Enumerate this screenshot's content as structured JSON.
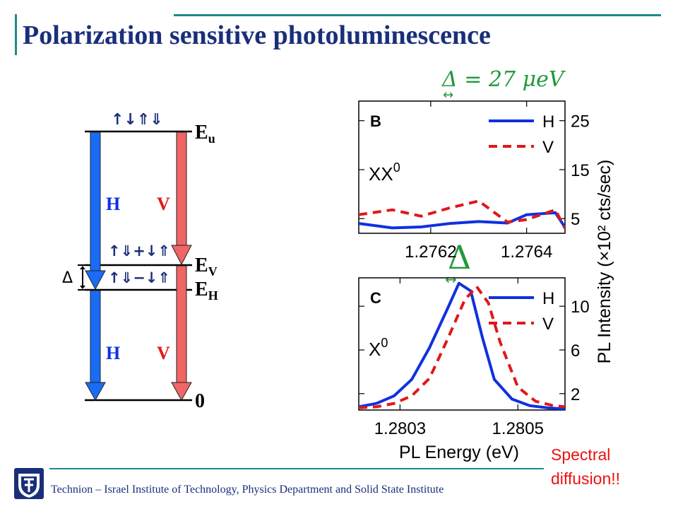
{
  "page": {
    "title": "Polarization sensitive photoluminescence",
    "footer": "Technion – Israel Institute of Technology, Physics Department and Solid State Institute",
    "note": "Spectral\ndiffusion!!",
    "colors": {
      "title": "#1a2f7a",
      "accent": "#1f8a8a",
      "H": "#1030e0",
      "V": "#e01818",
      "arrow_blue": "#1a6cf5",
      "arrow_red": "#f06565",
      "delta_arrow": "#1f9a3a"
    }
  },
  "level_diagram": {
    "levels": [
      {
        "id": "Eu",
        "label": "E",
        "sub": "u",
        "spin": "↑↓⇑⇓"
      },
      {
        "id": "EV",
        "label": "E",
        "sub": "V",
        "spin": "↑⇓+↓⇑"
      },
      {
        "id": "EH",
        "label": "E",
        "sub": "H",
        "spin": "↑⇓−↓⇑"
      },
      {
        "id": "zero",
        "label": "0",
        "sub": "",
        "spin": ""
      }
    ],
    "transitions": [
      {
        "label": "H",
        "from": "Eu",
        "to": "EH"
      },
      {
        "label": "V",
        "from": "Eu",
        "to": "EV"
      },
      {
        "label": "H",
        "from": "EH",
        "to": "zero"
      },
      {
        "label": "V",
        "from": "EV",
        "to": "zero"
      }
    ],
    "splitting_label": "Δ"
  },
  "annotations": {
    "top_delta": "Δ = 27 μeV",
    "middle_delta": "Δ",
    "double_arrow": "↔"
  },
  "chart_data": [
    {
      "type": "line",
      "panel_label": "B",
      "species_label": "XX",
      "species_sup": "0",
      "xlim": [
        1.27605,
        1.27648
      ],
      "ylim": [
        2,
        29
      ],
      "x_ticks": [
        1.2762,
        1.2764
      ],
      "x_tick_labels": [
        "1.2762",
        "1.2764"
      ],
      "y_ticks": [
        5,
        15,
        25
      ],
      "y_tick_labels": [
        "5",
        "15",
        "25"
      ],
      "legend": "top-right",
      "series": [
        {
          "name": "H",
          "style": "solid",
          "color": "#1030e0",
          "x": [
            1.27605,
            1.27612,
            1.27618,
            1.27624,
            1.2763,
            1.27636,
            1.2764,
            1.27646,
            1.27648
          ],
          "y": [
            4.0,
            3.1,
            3.3,
            4.0,
            4.4,
            4.1,
            5.8,
            6.2,
            3.2
          ]
        },
        {
          "name": "V",
          "style": "dashed",
          "color": "#e01818",
          "x": [
            1.27605,
            1.27612,
            1.27618,
            1.27624,
            1.2763,
            1.27636,
            1.2764,
            1.27646,
            1.27648
          ],
          "y": [
            5.8,
            6.8,
            5.5,
            7.2,
            8.6,
            4.3,
            4.8,
            6.8,
            3.0
          ]
        }
      ]
    },
    {
      "type": "line",
      "panel_label": "C",
      "species_label": "X",
      "species_sup": "0",
      "xlim": [
        1.28023,
        1.28058
      ],
      "ylim": [
        0.5,
        12.6
      ],
      "x_ticks": [
        1.2803,
        1.2805
      ],
      "x_tick_labels": [
        "1.2803",
        "1.2805"
      ],
      "y_ticks": [
        2,
        6,
        10
      ],
      "y_tick_labels": [
        "2",
        "6",
        "10"
      ],
      "legend": "top-right",
      "xlabel": "PL Energy (eV)",
      "series": [
        {
          "name": "H",
          "style": "solid",
          "color": "#1030e0",
          "x": [
            1.28023,
            1.28026,
            1.28029,
            1.28032,
            1.28035,
            1.28038,
            1.2804,
            1.28042,
            1.28044,
            1.28046,
            1.28049,
            1.28052,
            1.28055,
            1.28058
          ],
          "y": [
            0.8,
            1.1,
            1.8,
            3.3,
            6.2,
            9.7,
            12.1,
            11.4,
            7.1,
            3.3,
            1.5,
            0.9,
            0.7,
            0.6
          ]
        },
        {
          "name": "V",
          "style": "dashed",
          "color": "#e01818",
          "x": [
            1.28023,
            1.28026,
            1.28029,
            1.28032,
            1.28035,
            1.28038,
            1.28041,
            1.28043,
            1.28045,
            1.28047,
            1.2805,
            1.28053,
            1.28056,
            1.28058
          ],
          "y": [
            0.7,
            0.8,
            1.1,
            1.8,
            3.4,
            6.9,
            10.6,
            11.8,
            10.3,
            6.7,
            2.6,
            1.3,
            0.9,
            0.8
          ]
        }
      ]
    }
  ],
  "shared_axis": {
    "ylabel": "PL Intensity (×10² cts/sec)"
  }
}
